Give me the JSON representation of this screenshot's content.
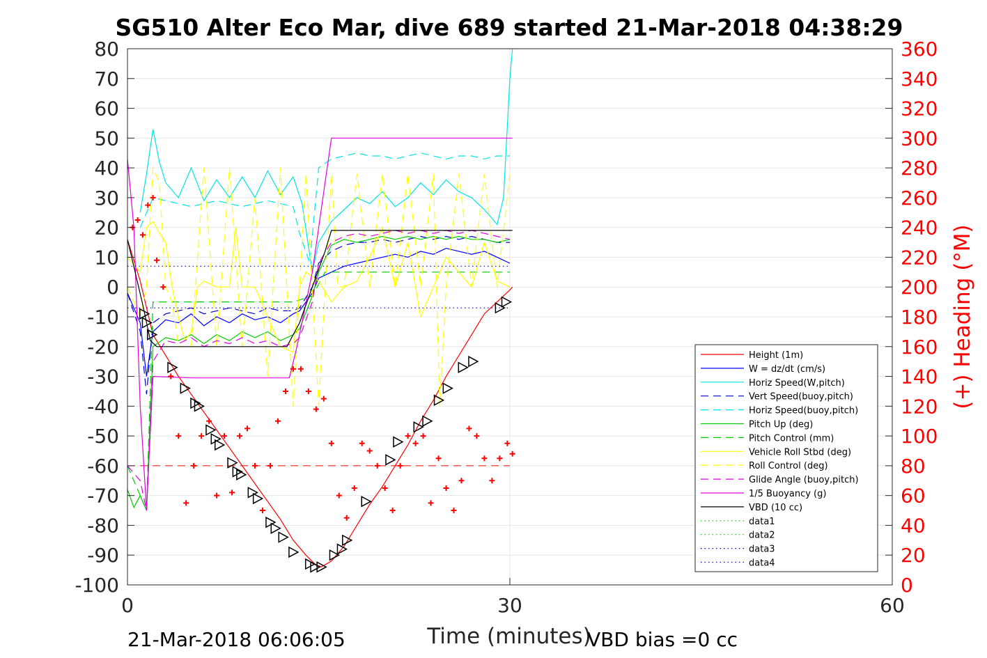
{
  "chart_data": {
    "type": "line",
    "title": "SG510 Alter Eco Mar, dive 689 started 21-Mar-2018 04:38:29",
    "xlabel": "Time (minutes)",
    "ylabel": "",
    "y2label": "(+) Heading (°M)",
    "xlim": [
      0,
      60
    ],
    "ylim": [
      -100,
      80
    ],
    "y2lim": [
      0,
      360
    ],
    "x_ticks": [
      "0",
      "30",
      "60"
    ],
    "y_ticks": [
      "80",
      "70",
      "60",
      "50",
      "40",
      "30",
      "20",
      "10",
      "0",
      "-10",
      "-20",
      "-30",
      "-40",
      "-50",
      "-60",
      "-70",
      "-80",
      "-90",
      "-100"
    ],
    "y2_ticks": [
      "360",
      "340",
      "320",
      "300",
      "280",
      "260",
      "240",
      "220",
      "200",
      "180",
      "160",
      "140",
      "120",
      "100",
      "80",
      "60",
      "40",
      "20",
      "0"
    ],
    "grid": true,
    "legend_position": "bottom-right",
    "footer_left": "21-Mar-2018 06:06:05",
    "footer_right": "VBD bias =0 cc",
    "colors": {
      "red": "#ff0000",
      "blue": "#0000ff",
      "navy": "#0000cc",
      "cyan": "#00e5e5",
      "green": "#00cc00",
      "yellow": "#ffff00",
      "magenta": "#e000e0",
      "black": "#000000"
    },
    "series": [
      {
        "name": "Height (1m)",
        "color": "#ff0000",
        "dash": "solid",
        "x": [
          0,
          1,
          2,
          3,
          4,
          5,
          6,
          7,
          8,
          9,
          10,
          11,
          12,
          13,
          14,
          14.7,
          15.2,
          16,
          17,
          18,
          19,
          20,
          21,
          22,
          23,
          24,
          25,
          26,
          27,
          28,
          29,
          30,
          30.2
        ],
        "y": [
          16,
          2,
          -16,
          -23,
          -30,
          -36,
          -42,
          -48,
          -54,
          -60,
          -66,
          -72,
          -78,
          -85,
          -90,
          -93,
          -94,
          -92,
          -87,
          -80,
          -73,
          -67,
          -60,
          -53,
          -45,
          -38,
          -30,
          -23,
          -16,
          -9,
          -5,
          -1,
          0
        ]
      },
      {
        "name": "W = dz/dt (cm/s)",
        "color": "#0000ff",
        "dash": "solid",
        "x": [
          0,
          1,
          1.5,
          2,
          3,
          4,
          5,
          6,
          7,
          8,
          9,
          10,
          11,
          12,
          13,
          13.5,
          14.5,
          15,
          16,
          17,
          18,
          19,
          20,
          21,
          22,
          23,
          24,
          25,
          26,
          27,
          28,
          29,
          30
        ],
        "y": [
          -2,
          -12,
          -30,
          -15,
          -11,
          -12,
          -9,
          -13,
          -10,
          -12,
          -9,
          -11,
          -10,
          -12,
          -9,
          -8,
          -2,
          3,
          5,
          7,
          8,
          9,
          10,
          11,
          10,
          12,
          11,
          13,
          12,
          11,
          12,
          10,
          8
        ]
      },
      {
        "name": "Horiz Speed(W,pitch)",
        "color": "#00e5e5",
        "dash": "solid",
        "x": [
          1,
          1.5,
          2,
          2.5,
          3,
          4,
          5,
          6,
          7,
          8,
          9,
          10,
          11,
          12,
          13,
          13.7,
          14.5,
          15,
          16,
          17,
          18,
          19,
          20,
          21,
          22,
          23,
          24,
          25,
          26,
          27,
          28,
          29,
          29.5,
          30,
          30.2
        ],
        "y": [
          25,
          38,
          53,
          42,
          35,
          30,
          40,
          29,
          36,
          30,
          37,
          30,
          39,
          31,
          37,
          28,
          5,
          15,
          22,
          26,
          30,
          28,
          32,
          27,
          30,
          35,
          31,
          36,
          32,
          30,
          26,
          21,
          30,
          70,
          80
        ]
      },
      {
        "name": "Vert Speed(buoy,pitch)",
        "color": "#0000cc",
        "dash": "long",
        "x": [
          0,
          1,
          1.5,
          2,
          3,
          4,
          5,
          6,
          7,
          8,
          9,
          10,
          11,
          12,
          13,
          13.5,
          14.5,
          15,
          16,
          17,
          18,
          19,
          20,
          21,
          22,
          23,
          24,
          25,
          26,
          27,
          28,
          29,
          30
        ],
        "y": [
          -2,
          -15,
          -36,
          -12,
          -9,
          -8,
          -7,
          -9,
          -8,
          -7,
          -8,
          -9,
          -7,
          -8,
          -8,
          -7,
          0,
          8,
          12,
          14,
          15,
          15,
          16,
          15,
          16,
          17,
          16,
          17,
          16,
          17,
          16,
          15,
          15
        ]
      },
      {
        "name": "Horiz Speed(buoy,pitch)",
        "color": "#00e5e5",
        "dash": "long",
        "x": [
          1,
          2,
          3,
          4,
          5,
          6,
          7,
          8,
          9,
          10,
          11,
          12,
          13,
          13.5,
          14.3,
          15,
          16,
          17,
          18,
          19,
          20,
          21,
          22,
          23,
          24,
          25,
          26,
          27,
          28,
          29,
          30
        ],
        "y": [
          20,
          30,
          29,
          28,
          27,
          28,
          29,
          28,
          27,
          28,
          29,
          28,
          27,
          18,
          8,
          40,
          43,
          44,
          45,
          44,
          44,
          43,
          44,
          45,
          44,
          43,
          44,
          44,
          43,
          44,
          44
        ]
      },
      {
        "name": "Pitch Up (deg)",
        "color": "#00cc00",
        "dash": "solid",
        "x": [
          0,
          0.5,
          1,
          1.5,
          2,
          3,
          4,
          5,
          6,
          7,
          8,
          9,
          10,
          11,
          12,
          13,
          13.5,
          14.5,
          15,
          16,
          17,
          18,
          19,
          20,
          21,
          22,
          23,
          24,
          25,
          26,
          27,
          28,
          29,
          30
        ],
        "y": [
          -68,
          -74,
          -70,
          -75,
          -20,
          -17,
          -18,
          -16,
          -19,
          -16,
          -18,
          -15,
          -17,
          -15,
          -18,
          -16,
          -14,
          -3,
          5,
          14,
          16,
          15,
          16,
          17,
          16,
          17,
          16,
          17,
          16,
          17,
          16,
          16,
          15,
          16
        ]
      },
      {
        "name": "Pitch Control (mm)",
        "color": "#00cc00",
        "dash": "long",
        "x": [
          0,
          1,
          1.5,
          2,
          5,
          10,
          13,
          14.5,
          15.5,
          20,
          25,
          30
        ],
        "y": [
          -60,
          -70,
          -75,
          -5,
          -5,
          -5,
          -5,
          -3,
          5,
          5,
          5,
          5
        ]
      },
      {
        "name": "Vehicle Roll Stbd (deg)",
        "color": "#ffff00",
        "dash": "solid",
        "x": [
          0,
          1,
          1.5,
          2,
          2.5,
          3,
          3.5,
          4,
          4.5,
          5,
          5.5,
          6,
          7,
          8,
          8.5,
          9,
          10,
          11,
          12,
          13,
          13.5,
          14,
          15,
          16,
          17,
          18,
          19,
          20,
          21,
          22,
          23,
          24,
          25,
          26,
          27,
          28,
          29,
          30
        ],
        "y": [
          10,
          5,
          20,
          22,
          18,
          15,
          0,
          -10,
          -18,
          -15,
          0,
          2,
          0,
          0,
          20,
          0,
          0,
          -10,
          -20,
          -22,
          0,
          5,
          2,
          -5,
          0,
          2,
          10,
          20,
          0,
          15,
          -10,
          0,
          10,
          5,
          0,
          15,
          2,
          0
        ]
      },
      {
        "name": "Roll Control (deg)",
        "color": "#ffff00",
        "dash": "long",
        "x": [
          0,
          1,
          1.5,
          2,
          2.5,
          3,
          3.5,
          4,
          5,
          6,
          7,
          8,
          9,
          10,
          11,
          12,
          13,
          13.5,
          14,
          15,
          16,
          16.5,
          17,
          18,
          19,
          20,
          21,
          22,
          23,
          24,
          24.5,
          25,
          26,
          27,
          28,
          29,
          30
        ],
        "y": [
          0,
          -10,
          0,
          40,
          35,
          0,
          -5,
          -20,
          -20,
          40,
          -20,
          40,
          -20,
          30,
          -30,
          40,
          -40,
          0,
          38,
          -40,
          38,
          0,
          0,
          38,
          0,
          38,
          0,
          38,
          0,
          38,
          -40,
          0,
          38,
          0,
          38,
          0,
          38
        ]
      },
      {
        "name": "Glide Angle (buoy,pitch)",
        "color": "#e000e0",
        "dash": "long",
        "x": [
          0,
          1,
          1.5,
          2,
          3,
          4,
          5,
          6,
          7,
          8,
          9,
          10,
          11,
          12,
          13,
          13.5,
          14.5,
          15,
          16,
          17,
          18,
          19,
          20,
          21,
          22,
          23,
          24,
          25,
          26,
          27,
          28,
          29,
          30
        ],
        "y": [
          -60,
          -65,
          -75,
          -25,
          -18,
          -19,
          -17,
          -20,
          -18,
          -19,
          -17,
          -19,
          -18,
          -20,
          -19,
          -17,
          -5,
          8,
          15,
          17,
          18,
          17,
          18,
          19,
          18,
          19,
          18,
          19,
          18,
          19,
          18,
          17,
          16
        ]
      },
      {
        "name": "1/5 Buoyancy (g)",
        "color": "#e000e0",
        "dash": "solid",
        "x": [
          0,
          0.5,
          1,
          1.5,
          2,
          5,
          10,
          12.7,
          13.3,
          14.5,
          16,
          20,
          25,
          30,
          30.2
        ],
        "y": [
          43,
          20,
          -40,
          -75,
          -30,
          -30.5,
          -30.5,
          -30.5,
          -20,
          5,
          50,
          50,
          50,
          50,
          50
        ]
      },
      {
        "name": "VBD (10 cc)",
        "color": "#000000",
        "dash": "solid",
        "x": [
          0,
          0.6,
          1.2,
          1.8,
          2.3,
          5,
          10,
          12.5,
          13.5,
          14.5,
          15.5,
          16,
          20,
          25,
          30,
          30.2
        ],
        "y": [
          16,
          5,
          -6,
          -18,
          -20,
          -20,
          -20,
          -20,
          -12,
          0,
          12,
          19,
          19,
          19,
          19,
          19
        ]
      },
      {
        "name": "data1",
        "color": "#00cc00",
        "dash": "dot",
        "x": [],
        "y": []
      },
      {
        "name": "data2",
        "color": "#00cc00",
        "dash": "dot",
        "x": [],
        "y": []
      },
      {
        "name": "data3",
        "color": "#0000cc",
        "dash": "dot",
        "x": [
          0,
          30
        ],
        "y": [
          7,
          7
        ]
      },
      {
        "name": "data4",
        "color": "#0000cc",
        "dash": "dot",
        "x": [
          0,
          30
        ],
        "y": [
          -7,
          -7
        ]
      }
    ],
    "reference_line": {
      "y": -60,
      "x": [
        0,
        30
      ],
      "color": "#ff0000",
      "dash": "long"
    },
    "heading_points": {
      "x": [
        0.4,
        0.8,
        1.2,
        1.6,
        2.0,
        2.3,
        2.8,
        3.4,
        4.0,
        4.6,
        5.2,
        5.8,
        6.4,
        7.0,
        7.6,
        8.2,
        8.8,
        9.4,
        10.0,
        10.6,
        11.2,
        11.8,
        12.4,
        13.0,
        13.6,
        14.2,
        14.8,
        15.4,
        16.0,
        16.6,
        17.2,
        17.8,
        18.4,
        19.0,
        19.6,
        20.2,
        20.8,
        21.4,
        22.0,
        22.6,
        23.2,
        23.8,
        24.4,
        25.0,
        25.6,
        26.2,
        26.8,
        27.4,
        28.0,
        28.6,
        29.2,
        29.8,
        30.2
      ],
      "y": [
        240,
        245,
        235,
        255,
        260,
        218,
        200,
        140,
        100,
        55,
        80,
        100,
        110,
        60,
        100,
        62,
        100,
        105,
        80,
        50,
        80,
        110,
        130,
        145,
        145,
        130,
        118,
        125,
        95,
        60,
        45,
        65,
        95,
        90,
        80,
        65,
        50,
        80,
        100,
        95,
        100,
        55,
        85,
        65,
        50,
        70,
        105,
        100,
        85,
        70,
        85,
        95,
        88
      ]
    },
    "markers_on_height": {
      "x": [
        1.3,
        1.5,
        1.9,
        3.5,
        4.5,
        5.3,
        5.6,
        6.5,
        6.9,
        7.2,
        8.2,
        8.6,
        8.9,
        9.8,
        10.2,
        11.2,
        11.6,
        12.2,
        13.0,
        14.3,
        14.7,
        15.2,
        16.2,
        16.8,
        17.2,
        18.7,
        20.6,
        21.2,
        22.8,
        23.5,
        24.4,
        25.1,
        26.3,
        27.1,
        29.2,
        29.7
      ],
      "y": [
        -9,
        -12,
        -16,
        -27,
        -34,
        -39,
        -40,
        -48,
        -51,
        -53,
        -59,
        -62,
        -63,
        -69,
        -71,
        -79,
        -81,
        -84,
        -89,
        -93,
        -94,
        -94,
        -90,
        -88,
        -85,
        -72,
        -58,
        -52,
        -47,
        -45,
        -38,
        -34,
        -27,
        -25,
        -7,
        -5
      ]
    }
  }
}
